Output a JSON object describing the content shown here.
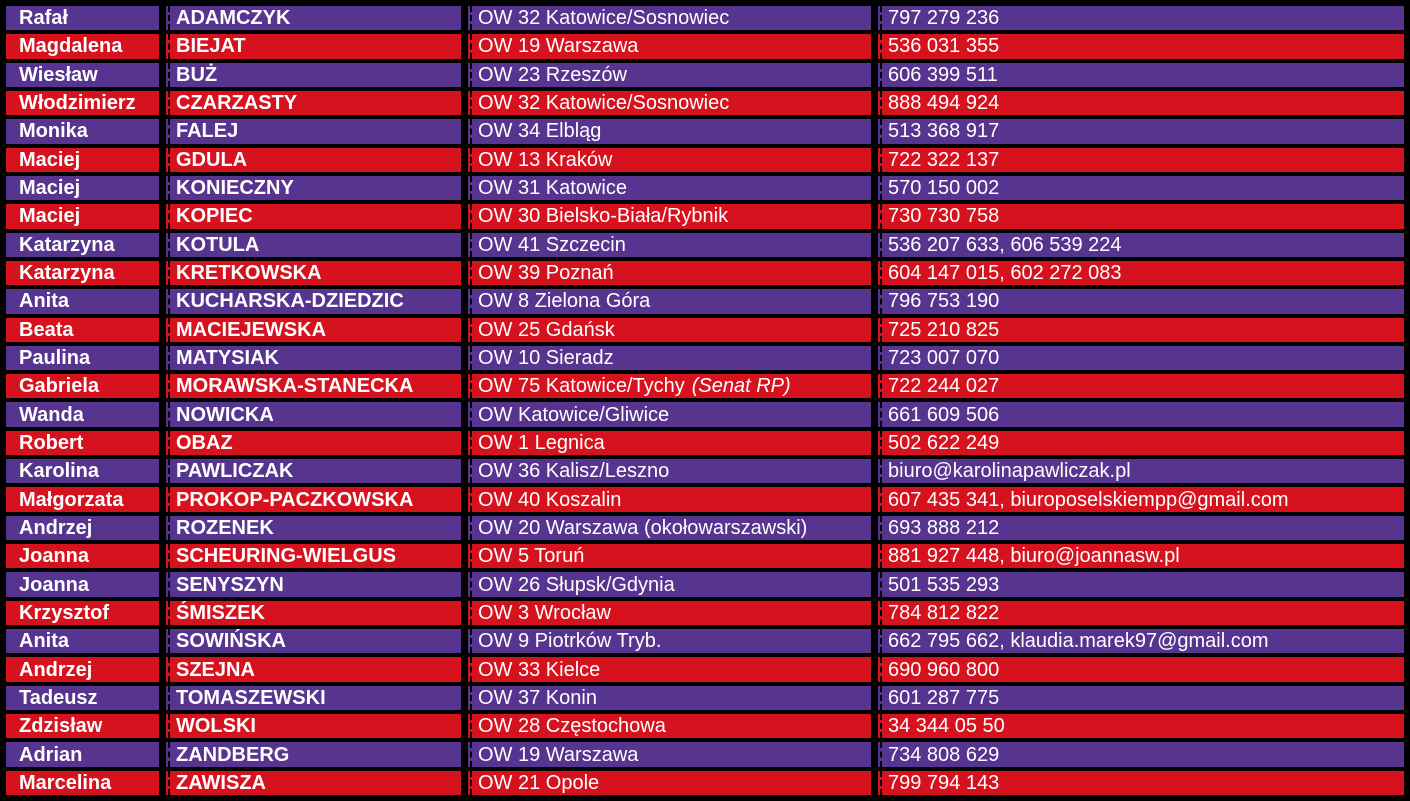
{
  "table": {
    "colors": {
      "row_purple": "#57348f",
      "row_red": "#d7121f",
      "grid_border": "#000000",
      "text": "#ffffff"
    },
    "rows": [
      {
        "row_color": "purple",
        "first_name": "Rafał",
        "last_name": "ADAMCZYK",
        "district": "OW 32 Katowice/Sosnowiec",
        "district_note": "",
        "contact": "797 279 236"
      },
      {
        "row_color": "red",
        "first_name": "Magdalena",
        "last_name": "BIEJAT",
        "district": "OW 19 Warszawa",
        "district_note": "",
        "contact": "536 031 355"
      },
      {
        "row_color": "purple",
        "first_name": "Wiesław",
        "last_name": "BUŻ",
        "district": "OW 23 Rzeszów",
        "district_note": "",
        "contact": "606 399 511"
      },
      {
        "row_color": "red",
        "first_name": "Włodzimierz",
        "last_name": "CZARZASTY",
        "district": "OW 32 Katowice/Sosnowiec",
        "district_note": "",
        "contact": "888 494 924"
      },
      {
        "row_color": "purple",
        "first_name": "Monika",
        "last_name": "FALEJ",
        "district": "OW 34 Elbląg",
        "district_note": "",
        "contact": "513 368 917"
      },
      {
        "row_color": "red",
        "first_name": "Maciej",
        "last_name": "GDULA",
        "district": "OW 13 Kraków",
        "district_note": "",
        "contact": "722 322 137"
      },
      {
        "row_color": "purple",
        "first_name": "Maciej",
        "last_name": "KONIECZNY",
        "district": "OW 31 Katowice",
        "district_note": "",
        "contact": "570 150 002"
      },
      {
        "row_color": "red",
        "first_name": "Maciej",
        "last_name": "KOPIEC",
        "district": "OW 30 Bielsko-Biała/Rybnik",
        "district_note": "",
        "contact": "730 730 758"
      },
      {
        "row_color": "purple",
        "first_name": "Katarzyna",
        "last_name": "KOTULA",
        "district": "OW 41 Szczecin",
        "district_note": "",
        "contact": "536 207 633, 606 539 224"
      },
      {
        "row_color": "red",
        "first_name": "Katarzyna",
        "last_name": "KRETKOWSKA",
        "district": "OW 39 Poznań",
        "district_note": "",
        "contact": "604 147 015, 602 272 083"
      },
      {
        "row_color": "purple",
        "first_name": "Anita",
        "last_name": "KUCHARSKA-DZIEDZIC",
        "district": "OW 8 Zielona Góra",
        "district_note": "",
        "contact": "796 753 190"
      },
      {
        "row_color": "red",
        "first_name": "Beata",
        "last_name": "MACIEJEWSKA",
        "district": "OW 25 Gdańsk",
        "district_note": "",
        "contact": "725 210 825"
      },
      {
        "row_color": "purple",
        "first_name": "Paulina",
        "last_name": "MATYSIAK",
        "district": "OW 10 Sieradz",
        "district_note": "",
        "contact": "723 007 070"
      },
      {
        "row_color": "red",
        "first_name": "Gabriela",
        "last_name": "MORAWSKA-STANECKA",
        "district": "OW 75 Katowice/Tychy",
        "district_note": "(Senat RP)",
        "contact": "722 244 027"
      },
      {
        "row_color": "purple",
        "first_name": "Wanda",
        "last_name": "NOWICKA",
        "district": "OW Katowice/Gliwice",
        "district_note": "",
        "contact": "661 609 506"
      },
      {
        "row_color": "red",
        "first_name": "Robert",
        "last_name": "OBAZ",
        "district": "OW 1 Legnica",
        "district_note": "",
        "contact": "502 622 249"
      },
      {
        "row_color": "purple",
        "first_name": "Karolina",
        "last_name": "PAWLICZAK",
        "district": "OW 36 Kalisz/Leszno",
        "district_note": "",
        "contact": "biuro@karolinapawliczak.pl"
      },
      {
        "row_color": "red",
        "first_name": "Małgorzata",
        "last_name": "PROKOP-PACZKOWSKA",
        "district": "OW 40 Koszalin",
        "district_note": "",
        "contact": "607 435 341, biuroposelskiempp@gmail.com"
      },
      {
        "row_color": "purple",
        "first_name": "Andrzej",
        "last_name": "ROZENEK",
        "district": "OW 20 Warszawa (okołowarszawski)",
        "district_note": "",
        "contact": "693 888 212"
      },
      {
        "row_color": "red",
        "first_name": "Joanna",
        "last_name": "SCHEURING-WIELGUS",
        "district": "OW 5 Toruń",
        "district_note": "",
        "contact": "881 927 448, biuro@joannasw.pl"
      },
      {
        "row_color": "purple",
        "first_name": "Joanna",
        "last_name": "SENYSZYN",
        "district": "OW 26 Słupsk/Gdynia",
        "district_note": "",
        "contact": "501 535 293"
      },
      {
        "row_color": "red",
        "first_name": "Krzysztof",
        "last_name": "ŚMISZEK",
        "district": "OW 3 Wrocław",
        "district_note": "",
        "contact": "784 812 822"
      },
      {
        "row_color": "purple",
        "first_name": "Anita",
        "last_name": "SOWIŃSKA",
        "district": "OW 9 Piotrków Tryb.",
        "district_note": "",
        "contact": "662 795 662, klaudia.marek97@gmail.com"
      },
      {
        "row_color": "red",
        "first_name": "Andrzej",
        "last_name": "SZEJNA",
        "district": "OW 33 Kielce",
        "district_note": "",
        "contact": "690 960 800"
      },
      {
        "row_color": "purple",
        "first_name": "Tadeusz",
        "last_name": "TOMASZEWSKI",
        "district": "OW 37 Konin",
        "district_note": "",
        "contact": "601 287 775"
      },
      {
        "row_color": "red",
        "first_name": "Zdzisław",
        "last_name": "WOLSKI",
        "district": "OW 28 Częstochowa",
        "district_note": "",
        "contact": "34 344 05 50"
      },
      {
        "row_color": "purple",
        "first_name": "Adrian",
        "last_name": "ZANDBERG",
        "district": "OW 19 Warszawa",
        "district_note": "",
        "contact": "734 808 629"
      },
      {
        "row_color": "red",
        "first_name": "Marcelina",
        "last_name": "ZAWISZA",
        "district": "OW 21 Opole",
        "district_note": "",
        "contact": "799 794 143"
      }
    ]
  }
}
